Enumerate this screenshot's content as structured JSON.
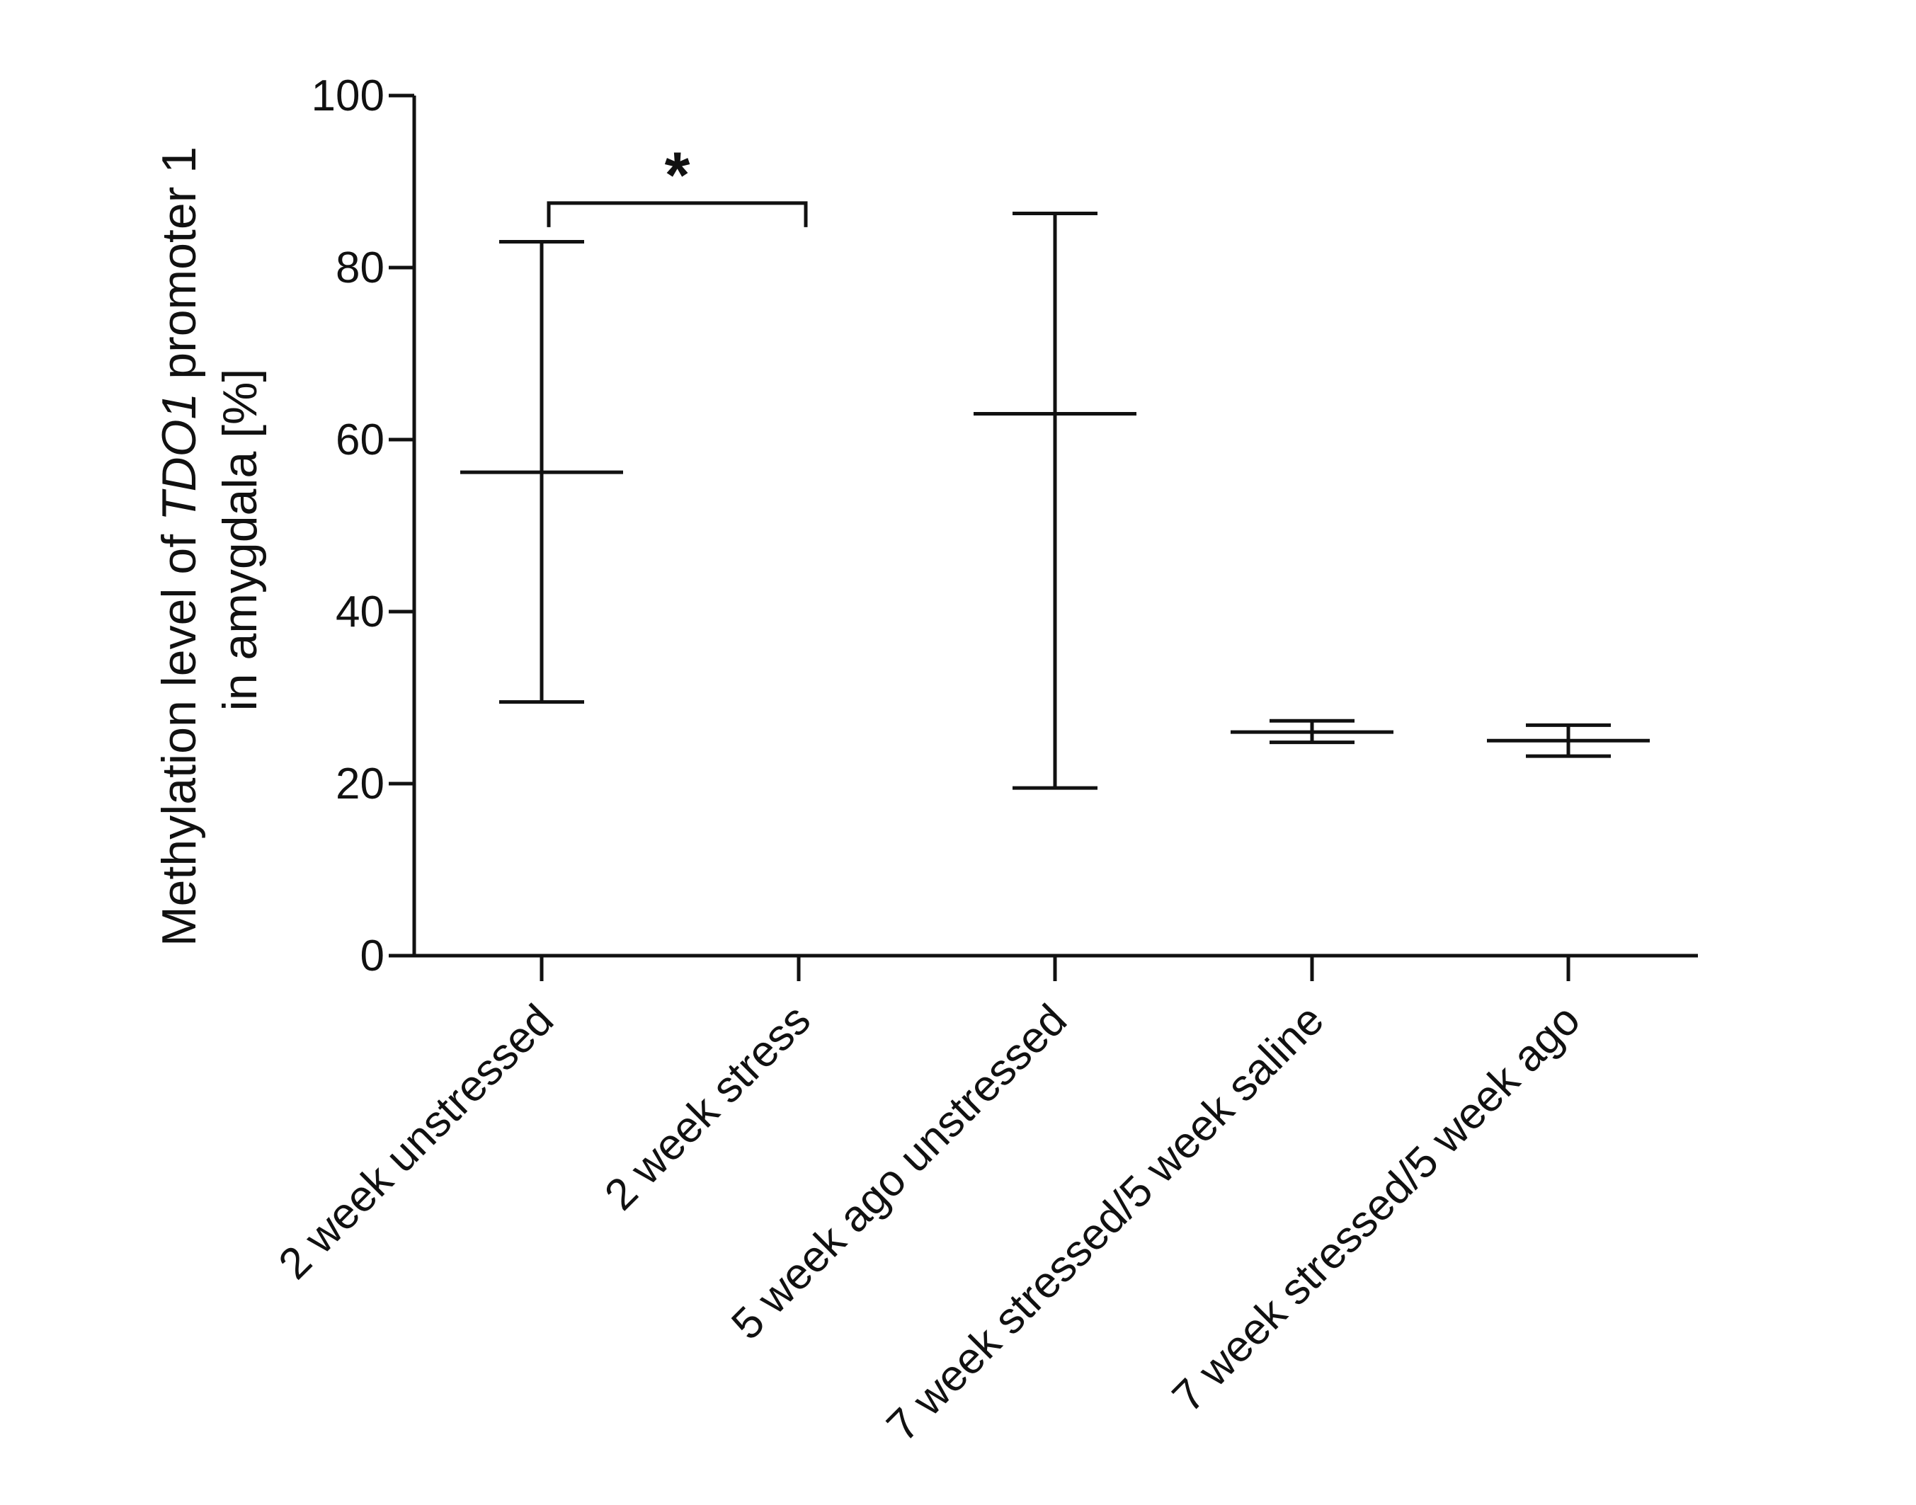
{
  "chart_data": {
    "type": "scatter",
    "subtype": "mean-with-error-range",
    "title": "",
    "xlabel": "",
    "ylabel": {
      "line1_pre": "Methylation level of ",
      "line1_italic": "TDO1",
      "line1_post": " promoter 1",
      "line2": "in amygdala [%]"
    },
    "ylim": [
      0,
      100
    ],
    "yticks": [
      "0",
      "20",
      "40",
      "60",
      "80",
      "100"
    ],
    "ytick_values": [
      0,
      20,
      40,
      60,
      80,
      100
    ],
    "categories": [
      "2 week unstressed",
      "2 week stress",
      "5 week ago unstressed",
      "7 week stressed/5 week saline",
      "7 week stressed/5 week ago"
    ],
    "series": [
      {
        "name": "methylation",
        "values": [
          {
            "category": "2 week unstressed",
            "mean": 56.2,
            "low": 29.5,
            "high": 83.0
          },
          {
            "category": "2 week stress",
            "mean": null,
            "low": null,
            "high": null
          },
          {
            "category": "5 week ago unstressed",
            "mean": 63.0,
            "low": 19.5,
            "high": 86.3
          },
          {
            "category": "7 week stressed/5 week saline",
            "mean": 26.0,
            "low": 24.8,
            "high": 27.3
          },
          {
            "category": "7 week stressed/5 week ago",
            "mean": 25.0,
            "low": 23.2,
            "high": 26.8
          }
        ]
      }
    ],
    "annotations": [
      {
        "type": "significance-bracket",
        "from": "2 week unstressed",
        "to": "2 week stress",
        "label": "*",
        "y": 87.5
      }
    ]
  }
}
